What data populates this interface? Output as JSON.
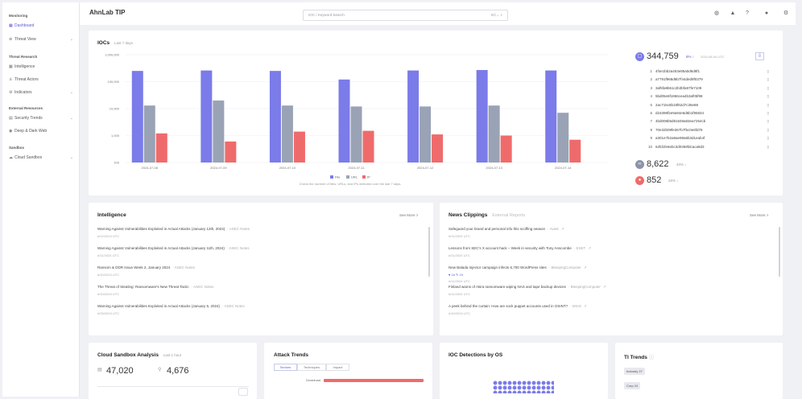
{
  "sidebar": {
    "sections": [
      {
        "title": "Monitoring",
        "items": [
          {
            "label": "Dashboard",
            "icon": "grid-icon",
            "active": true
          },
          {
            "label": "Threat View",
            "icon": "crosshair-icon",
            "chevron": true
          }
        ]
      },
      {
        "title": "Threat Research",
        "items": [
          {
            "label": "Intelligence",
            "icon": "grid-icon"
          },
          {
            "label": "Threat Actors",
            "icon": "person-icon"
          },
          {
            "label": "Indicators",
            "icon": "gear-icon",
            "chevron": true
          }
        ]
      },
      {
        "title": "External Resources",
        "items": [
          {
            "label": "Security Trends",
            "icon": "trend-icon",
            "chevron": true
          },
          {
            "label": "Deep & Dark Web",
            "icon": "globe-icon"
          }
        ]
      },
      {
        "title": "Sandbox",
        "items": [
          {
            "label": "Cloud Sandbox",
            "icon": "cloud-icon",
            "chevron": true
          }
        ]
      }
    ]
  },
  "header": {
    "title": "AhnLab TIP",
    "search_placeholder": "IOC / Keyword Search",
    "search_tail": "EC⌄",
    "icons": [
      "globe-icon",
      "bell-icon",
      "help-icon",
      "user-icon",
      "settings-icon"
    ]
  },
  "ioc": {
    "title": "IOCs",
    "subtitle": "Last 7 days",
    "caption": "Check the number of files, URLs, and IPs detected over the last 7 days.",
    "total": "344,759",
    "total_delta": "8% ↑",
    "total_date": "2024.08.04 UTC",
    "list": [
      "4f4e1bb2a453e85a0d6d8f1",
      "a7791f968d6b7f44ded9f0379",
      "3af5fa9b61c2b3bfa97fe7109",
      "5bd05e6f1866cea4b3af05f98",
      "2ac715c8b19f62d7c35e88",
      "d16398f2e9a94e6d6b1f95834",
      "4bd008b5d91849a83ea7254cb",
      "70e32b09fe367b7f5c0e6fd78",
      "a301e7b2a8ae98a6b3d1eab4f",
      "62fd1fe6ebc3d0369fdcaca9d3"
    ],
    "url_count": "8,622",
    "url_delta": "40% ↓",
    "ip_count": "852",
    "ip_delta": "26% ↓",
    "colors": {
      "file": "#7b7bea",
      "url": "#9aa3b5",
      "ip": "#ef6b6b"
    }
  },
  "chart_data": {
    "type": "bar",
    "categories": [
      "2024-07-08",
      "2024-07-09",
      "2024-07-10",
      "2024-07-11",
      "2024-07-12",
      "2024-07-13",
      "2024-07-14"
    ],
    "y_ticks": [
      "1,000,000",
      "100,000",
      "10,000",
      "1,000",
      "100"
    ],
    "log_scale": true,
    "ylim": [
      100,
      1000000
    ],
    "series": [
      {
        "name": "File",
        "values": [
          250000,
          260000,
          250000,
          120000,
          260000,
          270000,
          260000
        ]
      },
      {
        "name": "URL",
        "values": [
          13000,
          20000,
          13000,
          12000,
          12000,
          13000,
          7000
        ]
      },
      {
        "name": "IP",
        "values": [
          1200,
          600,
          1400,
          1500,
          1100,
          1000,
          700
        ]
      }
    ],
    "legend": "bottom"
  },
  "intelligence": {
    "title": "Intelligence",
    "see_more": "See More >",
    "items": [
      {
        "title": "Warning Against Vulnerabilities Exploited in Actual Attacks (January 12th, 2024)",
        "tag": "ASEC Notes",
        "date": "#/12/2024 UTC"
      },
      {
        "title": "Warning Against Vulnerabilities Exploited in Actual Attacks (January 11th, 2024)",
        "tag": "ASEC Notes",
        "date": "#/11/2024 UTC"
      },
      {
        "title": "Ransom & DDR Issue Week 2, January 2024",
        "tag": "ASEC Notes",
        "date": "#/10/2024 UTC"
      },
      {
        "title": "The Threat of Stealing: Ransomware's New Threat Tactic",
        "tag": "ASEC Notes",
        "date": "#/10/2024 UTC"
      },
      {
        "title": "Warning Against Vulnerabilities Exploited in Actual Attacks (January 5, 2024)",
        "tag": "ASEC Notes",
        "date": "#/05/2024 UTC"
      }
    ]
  },
  "news": {
    "title": "News Clippings",
    "tab2": "External Reports",
    "see_more": "See More >",
    "items": [
      {
        "title": "Safeguard your brand and personal info this scoffing season",
        "tag": "Avast",
        "date": "#/11/2024 UTC"
      },
      {
        "title": "Lessons from SEC's X account hack – Week in security with Tony Anscombe",
        "tag": "ESET",
        "date": "#/11/2024 UTC"
      },
      {
        "title": "New Balada Injector campaign infects 6,700 WordPress sites",
        "tag": "BleepingComputer",
        "date": "#/11/2024 UTC",
        "likes": "16",
        "comments": "19"
      },
      {
        "title": "Finland warns of Akira ransomware wiping NAS and tape backup devices",
        "tag": "BleepingComputer",
        "date": "#/11/2024 UTC"
      },
      {
        "title": "A peek behind the curtain: How are sock puppet accounts used in OSINT?",
        "tag": "MIAS",
        "date": "#/10/2024 UTC"
      }
    ]
  },
  "sandbox": {
    "title": "Cloud Sandbox Analysis",
    "subtitle": "Last 1 hour",
    "count1": "47,020",
    "count2": "4,676"
  },
  "attack": {
    "title": "Attack Trends",
    "tabs": [
      "Sectors",
      "Techniques",
      "Impact"
    ],
    "row_label": "Download"
  },
  "os": {
    "title": "IOC Detections by OS"
  },
  "trends": {
    "title": "TI Trends",
    "chips": [
      "Industry 27",
      "Corp 24"
    ]
  }
}
